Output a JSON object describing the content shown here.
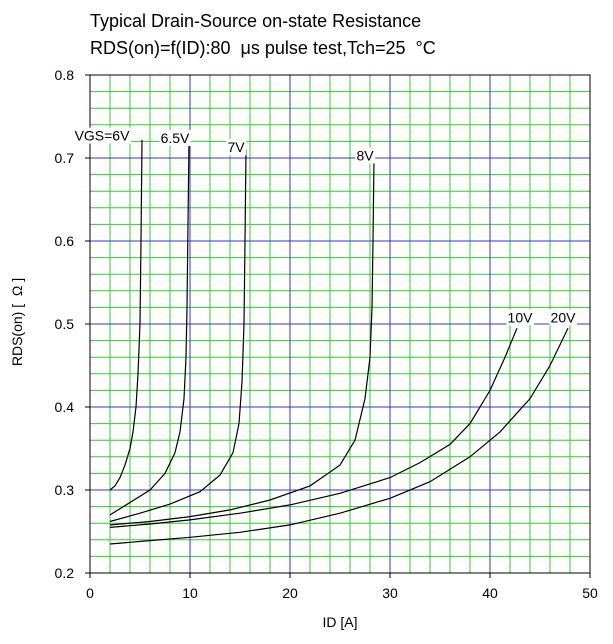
{
  "chart_data": {
    "type": "line",
    "title": "Typical Drain-Source on-state Resistance",
    "subtitle": "RDS(on)=f(ID):80  μs pulse test,Tch=25  °C",
    "xlabel": "ID [A]",
    "ylabel": "RDS(on) [  Ω ]",
    "xlim": [
      0,
      50
    ],
    "ylim": [
      0.2,
      0.8
    ],
    "xticks": [
      0,
      10,
      20,
      30,
      40,
      50
    ],
    "yticks": [
      0.2,
      0.3,
      0.4,
      0.5,
      0.6,
      0.7,
      0.8
    ],
    "grid": true,
    "grid_minor_x": 2,
    "grid_minor_y": 0.02,
    "colors": {
      "grid_major": "#3333cc",
      "grid_minor": "#33cc33",
      "curve": "#000000",
      "background": "#ffffff"
    },
    "series": [
      {
        "name": "VGS=6V",
        "label_at": [
          1.2,
          0.721
        ],
        "x": [
          2.0,
          2.5,
          3.0,
          3.5,
          4.0,
          4.3,
          4.6,
          4.8,
          5.0,
          5.1,
          5.2
        ],
        "y": [
          0.3,
          0.305,
          0.315,
          0.33,
          0.35,
          0.37,
          0.4,
          0.44,
          0.5,
          0.6,
          0.722
        ]
      },
      {
        "name": "6.5V",
        "label_at": [
          8.5,
          0.718
        ],
        "x": [
          2.0,
          4.0,
          6.0,
          7.5,
          8.5,
          9.0,
          9.4,
          9.6,
          9.7,
          9.8,
          9.9
        ],
        "y": [
          0.27,
          0.285,
          0.3,
          0.32,
          0.345,
          0.37,
          0.41,
          0.46,
          0.52,
          0.62,
          0.72
        ]
      },
      {
        "name": "7V",
        "label_at": [
          14.6,
          0.707
        ],
        "x": [
          2.0,
          5.0,
          8.0,
          11.0,
          13.0,
          14.3,
          14.9,
          15.2,
          15.4,
          15.5,
          15.6
        ],
        "y": [
          0.262,
          0.272,
          0.283,
          0.298,
          0.318,
          0.345,
          0.38,
          0.43,
          0.5,
          0.6,
          0.71
        ]
      },
      {
        "name": "8V",
        "label_at": [
          27.5,
          0.697
        ],
        "x": [
          2.0,
          6.0,
          10.0,
          14.0,
          18.0,
          22.0,
          25.0,
          26.5,
          27.5,
          28.0,
          28.2,
          28.3,
          28.4
        ],
        "y": [
          0.258,
          0.262,
          0.268,
          0.276,
          0.288,
          0.305,
          0.33,
          0.36,
          0.41,
          0.46,
          0.52,
          0.6,
          0.7
        ]
      },
      {
        "name": "10V",
        "label_at": [
          43.0,
          0.502
        ],
        "x": [
          2.0,
          6.0,
          10.0,
          15.0,
          20.0,
          25.0,
          30.0,
          33.0,
          36.0,
          38.0,
          40.0,
          41.5,
          42.7
        ],
        "y": [
          0.255,
          0.259,
          0.264,
          0.272,
          0.282,
          0.296,
          0.315,
          0.333,
          0.355,
          0.38,
          0.42,
          0.46,
          0.495
        ]
      },
      {
        "name": "20V",
        "label_at": [
          47.3,
          0.502
        ],
        "x": [
          2.0,
          6.0,
          10.0,
          15.0,
          20.0,
          25.0,
          30.0,
          34.0,
          38.0,
          41.0,
          44.0,
          46.0,
          47.8
        ],
        "y": [
          0.235,
          0.239,
          0.243,
          0.249,
          0.258,
          0.272,
          0.29,
          0.31,
          0.34,
          0.37,
          0.41,
          0.45,
          0.495
        ]
      }
    ]
  }
}
